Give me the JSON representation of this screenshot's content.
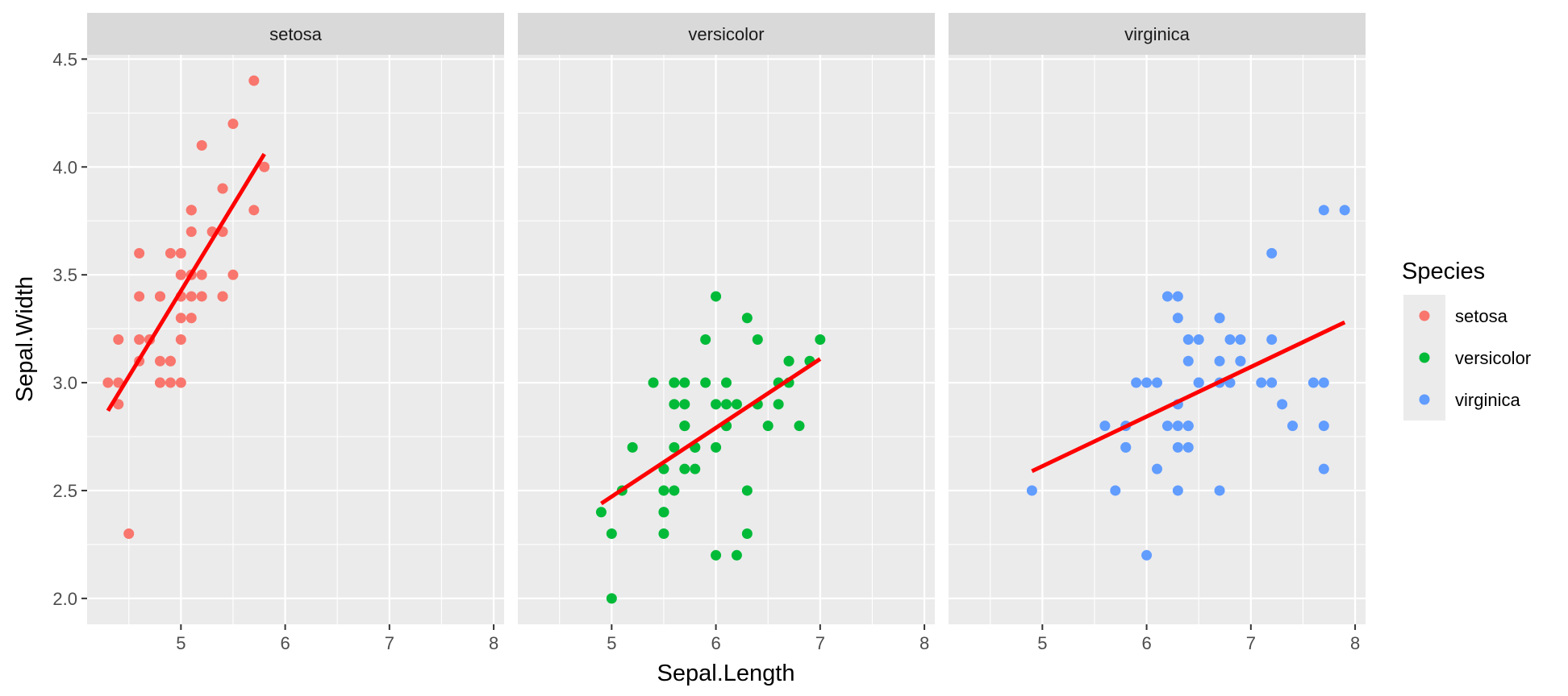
{
  "chart_data": {
    "type": "scatter",
    "facet_by": "Species",
    "xlabel": "Sepal.Length",
    "ylabel": "Sepal.Width",
    "xlim": [
      4.1,
      8.1
    ],
    "ylim": [
      1.88,
      4.52
    ],
    "x_ticks": [
      5,
      6,
      7,
      8
    ],
    "x_minor_ticks": [
      4.5,
      5.5,
      6.5,
      7.5
    ],
    "y_ticks": [
      2.0,
      2.5,
      3.0,
      3.5,
      4.0,
      4.5
    ],
    "y_tick_labels": [
      "2.0",
      "2.5",
      "3.0",
      "3.5",
      "4.0",
      "4.5"
    ],
    "y_minor_ticks": [
      2.25,
      2.75,
      3.25,
      3.75,
      4.25
    ],
    "grid": true,
    "trend_line_color": "#FF0000",
    "panel_background": "#EBEBEB",
    "strip_background": "#D9D9D9",
    "legend": {
      "title": "Species",
      "position": "right",
      "entries": [
        "setosa",
        "versicolor",
        "virginica"
      ]
    },
    "panels": [
      {
        "name": "setosa",
        "color": "#F8766D",
        "trend": {
          "x": [
            4.3,
            5.8
          ],
          "y": [
            2.87,
            4.06
          ]
        },
        "points": [
          [
            5.1,
            3.5
          ],
          [
            4.9,
            3.0
          ],
          [
            4.7,
            3.2
          ],
          [
            4.6,
            3.1
          ],
          [
            5.0,
            3.6
          ],
          [
            5.4,
            3.9
          ],
          [
            4.6,
            3.4
          ],
          [
            5.0,
            3.4
          ],
          [
            4.4,
            2.9
          ],
          [
            4.9,
            3.1
          ],
          [
            5.4,
            3.7
          ],
          [
            4.8,
            3.4
          ],
          [
            4.8,
            3.0
          ],
          [
            4.3,
            3.0
          ],
          [
            5.8,
            4.0
          ],
          [
            5.7,
            4.4
          ],
          [
            5.4,
            3.9
          ],
          [
            5.1,
            3.5
          ],
          [
            5.7,
            3.8
          ],
          [
            5.1,
            3.8
          ],
          [
            5.4,
            3.4
          ],
          [
            5.1,
            3.7
          ],
          [
            4.6,
            3.6
          ],
          [
            5.1,
            3.3
          ],
          [
            4.8,
            3.4
          ],
          [
            5.0,
            3.0
          ],
          [
            5.0,
            3.4
          ],
          [
            5.2,
            3.5
          ],
          [
            5.2,
            3.4
          ],
          [
            4.7,
            3.2
          ],
          [
            4.8,
            3.1
          ],
          [
            5.4,
            3.4
          ],
          [
            5.2,
            4.1
          ],
          [
            5.5,
            4.2
          ],
          [
            4.9,
            3.1
          ],
          [
            5.0,
            3.2
          ],
          [
            5.5,
            3.5
          ],
          [
            4.9,
            3.6
          ],
          [
            4.4,
            3.0
          ],
          [
            5.1,
            3.4
          ],
          [
            5.0,
            3.5
          ],
          [
            4.5,
            2.3
          ],
          [
            4.4,
            3.2
          ],
          [
            5.0,
            3.5
          ],
          [
            5.1,
            3.8
          ],
          [
            4.8,
            3.0
          ],
          [
            5.1,
            3.8
          ],
          [
            4.6,
            3.2
          ],
          [
            5.3,
            3.7
          ],
          [
            5.0,
            3.3
          ]
        ]
      },
      {
        "name": "versicolor",
        "color": "#00BA38",
        "trend": {
          "x": [
            4.9,
            7.0
          ],
          "y": [
            2.44,
            3.11
          ]
        },
        "points": [
          [
            7.0,
            3.2
          ],
          [
            6.4,
            3.2
          ],
          [
            6.9,
            3.1
          ],
          [
            5.5,
            2.3
          ],
          [
            6.5,
            2.8
          ],
          [
            5.7,
            2.8
          ],
          [
            6.3,
            3.3
          ],
          [
            4.9,
            2.4
          ],
          [
            6.6,
            2.9
          ],
          [
            5.2,
            2.7
          ],
          [
            5.0,
            2.0
          ],
          [
            5.9,
            3.0
          ],
          [
            6.0,
            2.2
          ],
          [
            6.1,
            2.9
          ],
          [
            5.6,
            2.9
          ],
          [
            6.7,
            3.1
          ],
          [
            5.6,
            3.0
          ],
          [
            5.8,
            2.7
          ],
          [
            6.2,
            2.2
          ],
          [
            5.6,
            2.5
          ],
          [
            5.9,
            3.2
          ],
          [
            6.1,
            2.8
          ],
          [
            6.3,
            2.5
          ],
          [
            6.1,
            2.8
          ],
          [
            6.4,
            2.9
          ],
          [
            6.6,
            3.0
          ],
          [
            6.8,
            2.8
          ],
          [
            6.7,
            3.0
          ],
          [
            6.0,
            2.9
          ],
          [
            5.7,
            2.6
          ],
          [
            5.5,
            2.4
          ],
          [
            5.5,
            2.4
          ],
          [
            5.8,
            2.7
          ],
          [
            6.0,
            2.7
          ],
          [
            5.4,
            3.0
          ],
          [
            6.0,
            3.4
          ],
          [
            6.7,
            3.1
          ],
          [
            6.3,
            2.3
          ],
          [
            5.6,
            3.0
          ],
          [
            5.5,
            2.5
          ],
          [
            5.5,
            2.6
          ],
          [
            6.1,
            3.0
          ],
          [
            5.8,
            2.6
          ],
          [
            5.0,
            2.3
          ],
          [
            5.6,
            2.7
          ],
          [
            5.7,
            3.0
          ],
          [
            5.7,
            2.9
          ],
          [
            6.2,
            2.9
          ],
          [
            5.1,
            2.5
          ],
          [
            5.7,
            2.8
          ]
        ]
      },
      {
        "name": "virginica",
        "color": "#619CFF",
        "trend": {
          "x": [
            4.9,
            7.9
          ],
          "y": [
            2.59,
            3.28
          ]
        },
        "points": [
          [
            6.3,
            3.3
          ],
          [
            5.8,
            2.7
          ],
          [
            7.1,
            3.0
          ],
          [
            6.3,
            2.9
          ],
          [
            6.5,
            3.0
          ],
          [
            7.6,
            3.0
          ],
          [
            4.9,
            2.5
          ],
          [
            7.3,
            2.9
          ],
          [
            6.7,
            2.5
          ],
          [
            7.2,
            3.6
          ],
          [
            6.5,
            3.2
          ],
          [
            6.4,
            2.7
          ],
          [
            6.8,
            3.0
          ],
          [
            5.7,
            2.5
          ],
          [
            5.8,
            2.8
          ],
          [
            6.4,
            3.2
          ],
          [
            6.5,
            3.0
          ],
          [
            7.7,
            3.8
          ],
          [
            7.7,
            2.6
          ],
          [
            6.0,
            2.2
          ],
          [
            6.9,
            3.2
          ],
          [
            5.6,
            2.8
          ],
          [
            7.7,
            2.8
          ],
          [
            6.3,
            2.7
          ],
          [
            6.7,
            3.3
          ],
          [
            7.2,
            3.2
          ],
          [
            6.2,
            2.8
          ],
          [
            6.1,
            3.0
          ],
          [
            6.4,
            2.8
          ],
          [
            7.2,
            3.0
          ],
          [
            7.4,
            2.8
          ],
          [
            7.9,
            3.8
          ],
          [
            6.4,
            2.8
          ],
          [
            6.3,
            2.8
          ],
          [
            6.1,
            2.6
          ],
          [
            7.7,
            3.0
          ],
          [
            6.3,
            3.4
          ],
          [
            6.4,
            3.1
          ],
          [
            6.0,
            3.0
          ],
          [
            6.9,
            3.1
          ],
          [
            6.7,
            3.1
          ],
          [
            6.9,
            3.1
          ],
          [
            5.8,
            2.7
          ],
          [
            6.8,
            3.2
          ],
          [
            6.7,
            3.3
          ],
          [
            6.7,
            3.0
          ],
          [
            6.3,
            2.5
          ],
          [
            6.5,
            3.0
          ],
          [
            6.2,
            3.4
          ],
          [
            5.9,
            3.0
          ]
        ]
      }
    ]
  }
}
